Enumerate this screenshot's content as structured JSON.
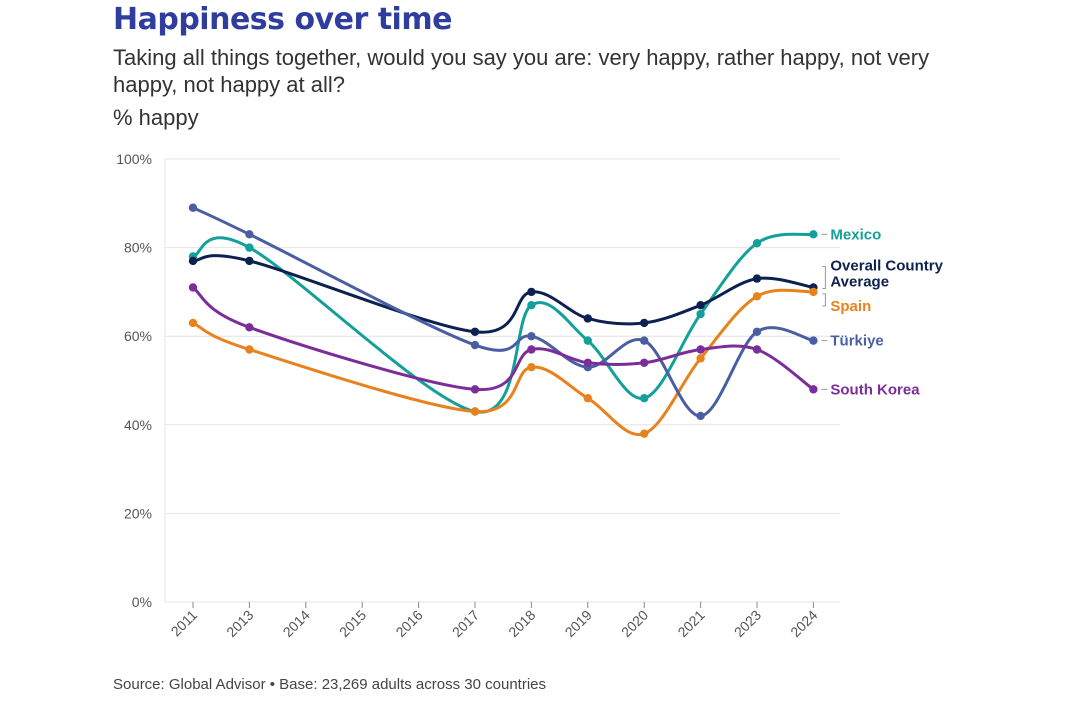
{
  "chart_data": {
    "type": "line",
    "title": "Happiness over time",
    "subtitle": "Taking all things together, would you say you are: very happy, rather happy, not very happy, not happy at all?",
    "ylabel": "% happy",
    "xlabel": "",
    "categories": [
      "2011",
      "2013",
      "2014",
      "2015",
      "2016",
      "2017",
      "2018",
      "2019",
      "2020",
      "2021",
      "2023",
      "2024"
    ],
    "ylim": [
      0,
      100
    ],
    "yticks": [
      0,
      20,
      40,
      60,
      80,
      100
    ],
    "ytick_labels": [
      "0%",
      "20%",
      "40%",
      "60%",
      "80%",
      "100%"
    ],
    "grid": true,
    "legend": "direct labels at right end of lines",
    "series": [
      {
        "name": "Mexico",
        "color": "#14a09a",
        "values": [
          78,
          80,
          null,
          null,
          null,
          43,
          67,
          59,
          46,
          65,
          81,
          83
        ]
      },
      {
        "name": "Overall Country Average",
        "color": "#0d2150",
        "values": [
          77,
          77,
          null,
          null,
          null,
          61,
          70,
          64,
          63,
          67,
          73,
          71
        ]
      },
      {
        "name": "Spain",
        "color": "#e8821e",
        "values": [
          63,
          57,
          null,
          null,
          null,
          43,
          53,
          46,
          38,
          55,
          69,
          70
        ]
      },
      {
        "name": "Türkiye",
        "color": "#4a5fa3",
        "values": [
          89,
          83,
          null,
          null,
          null,
          58,
          60,
          53,
          59,
          42,
          61,
          59
        ]
      },
      {
        "name": "South Korea",
        "color": "#7b2d9a",
        "values": [
          71,
          62,
          null,
          null,
          null,
          48,
          57,
          54,
          54,
          57,
          57,
          48
        ]
      }
    ],
    "labels": [
      {
        "series": "Mexico",
        "text": "Mexico"
      },
      {
        "series": "Overall Country Average",
        "text": "Overall Country Average"
      },
      {
        "series": "Spain",
        "text": "Spain"
      },
      {
        "series": "Türkiye",
        "text": "Türkiye"
      },
      {
        "series": "South Korea",
        "text": "South Korea"
      }
    ]
  },
  "caption": "Source: Global Advisor • Base: 23,269 adults across 30 countries"
}
